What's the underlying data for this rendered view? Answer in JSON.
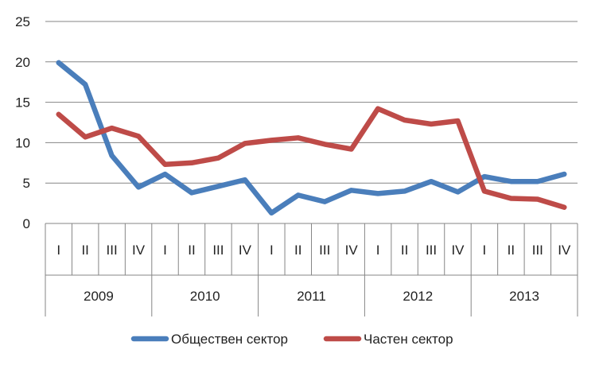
{
  "chart_data": {
    "type": "line",
    "title": "",
    "xlabel": "",
    "ylabel": "",
    "ylim": [
      0,
      25
    ],
    "yticks": [
      0,
      5,
      10,
      15,
      20,
      25
    ],
    "grid": true,
    "legend_position": "bottom",
    "quarters": [
      "I",
      "II",
      "III",
      "IV",
      "I",
      "II",
      "III",
      "IV",
      "I",
      "II",
      "III",
      "IV",
      "I",
      "II",
      "III",
      "IV",
      "I",
      "II",
      "III",
      "IV"
    ],
    "years": [
      "2009",
      "2010",
      "2011",
      "2012",
      "2013"
    ],
    "series": [
      {
        "name": "Обществен сектор",
        "color": "#4a7ebb",
        "values": [
          19.9,
          17.2,
          8.4,
          4.5,
          6.1,
          3.8,
          4.6,
          5.4,
          1.3,
          3.5,
          2.7,
          4.1,
          3.7,
          4.0,
          5.2,
          3.9,
          5.8,
          5.2,
          5.2,
          6.1
        ]
      },
      {
        "name": "Частен сектор",
        "color": "#be4b48",
        "values": [
          13.5,
          10.7,
          11.8,
          10.8,
          7.3,
          7.5,
          8.1,
          9.9,
          10.3,
          10.6,
          9.8,
          9.2,
          14.2,
          12.8,
          12.3,
          12.7,
          4.0,
          3.1,
          3.0,
          2.0
        ]
      }
    ]
  }
}
